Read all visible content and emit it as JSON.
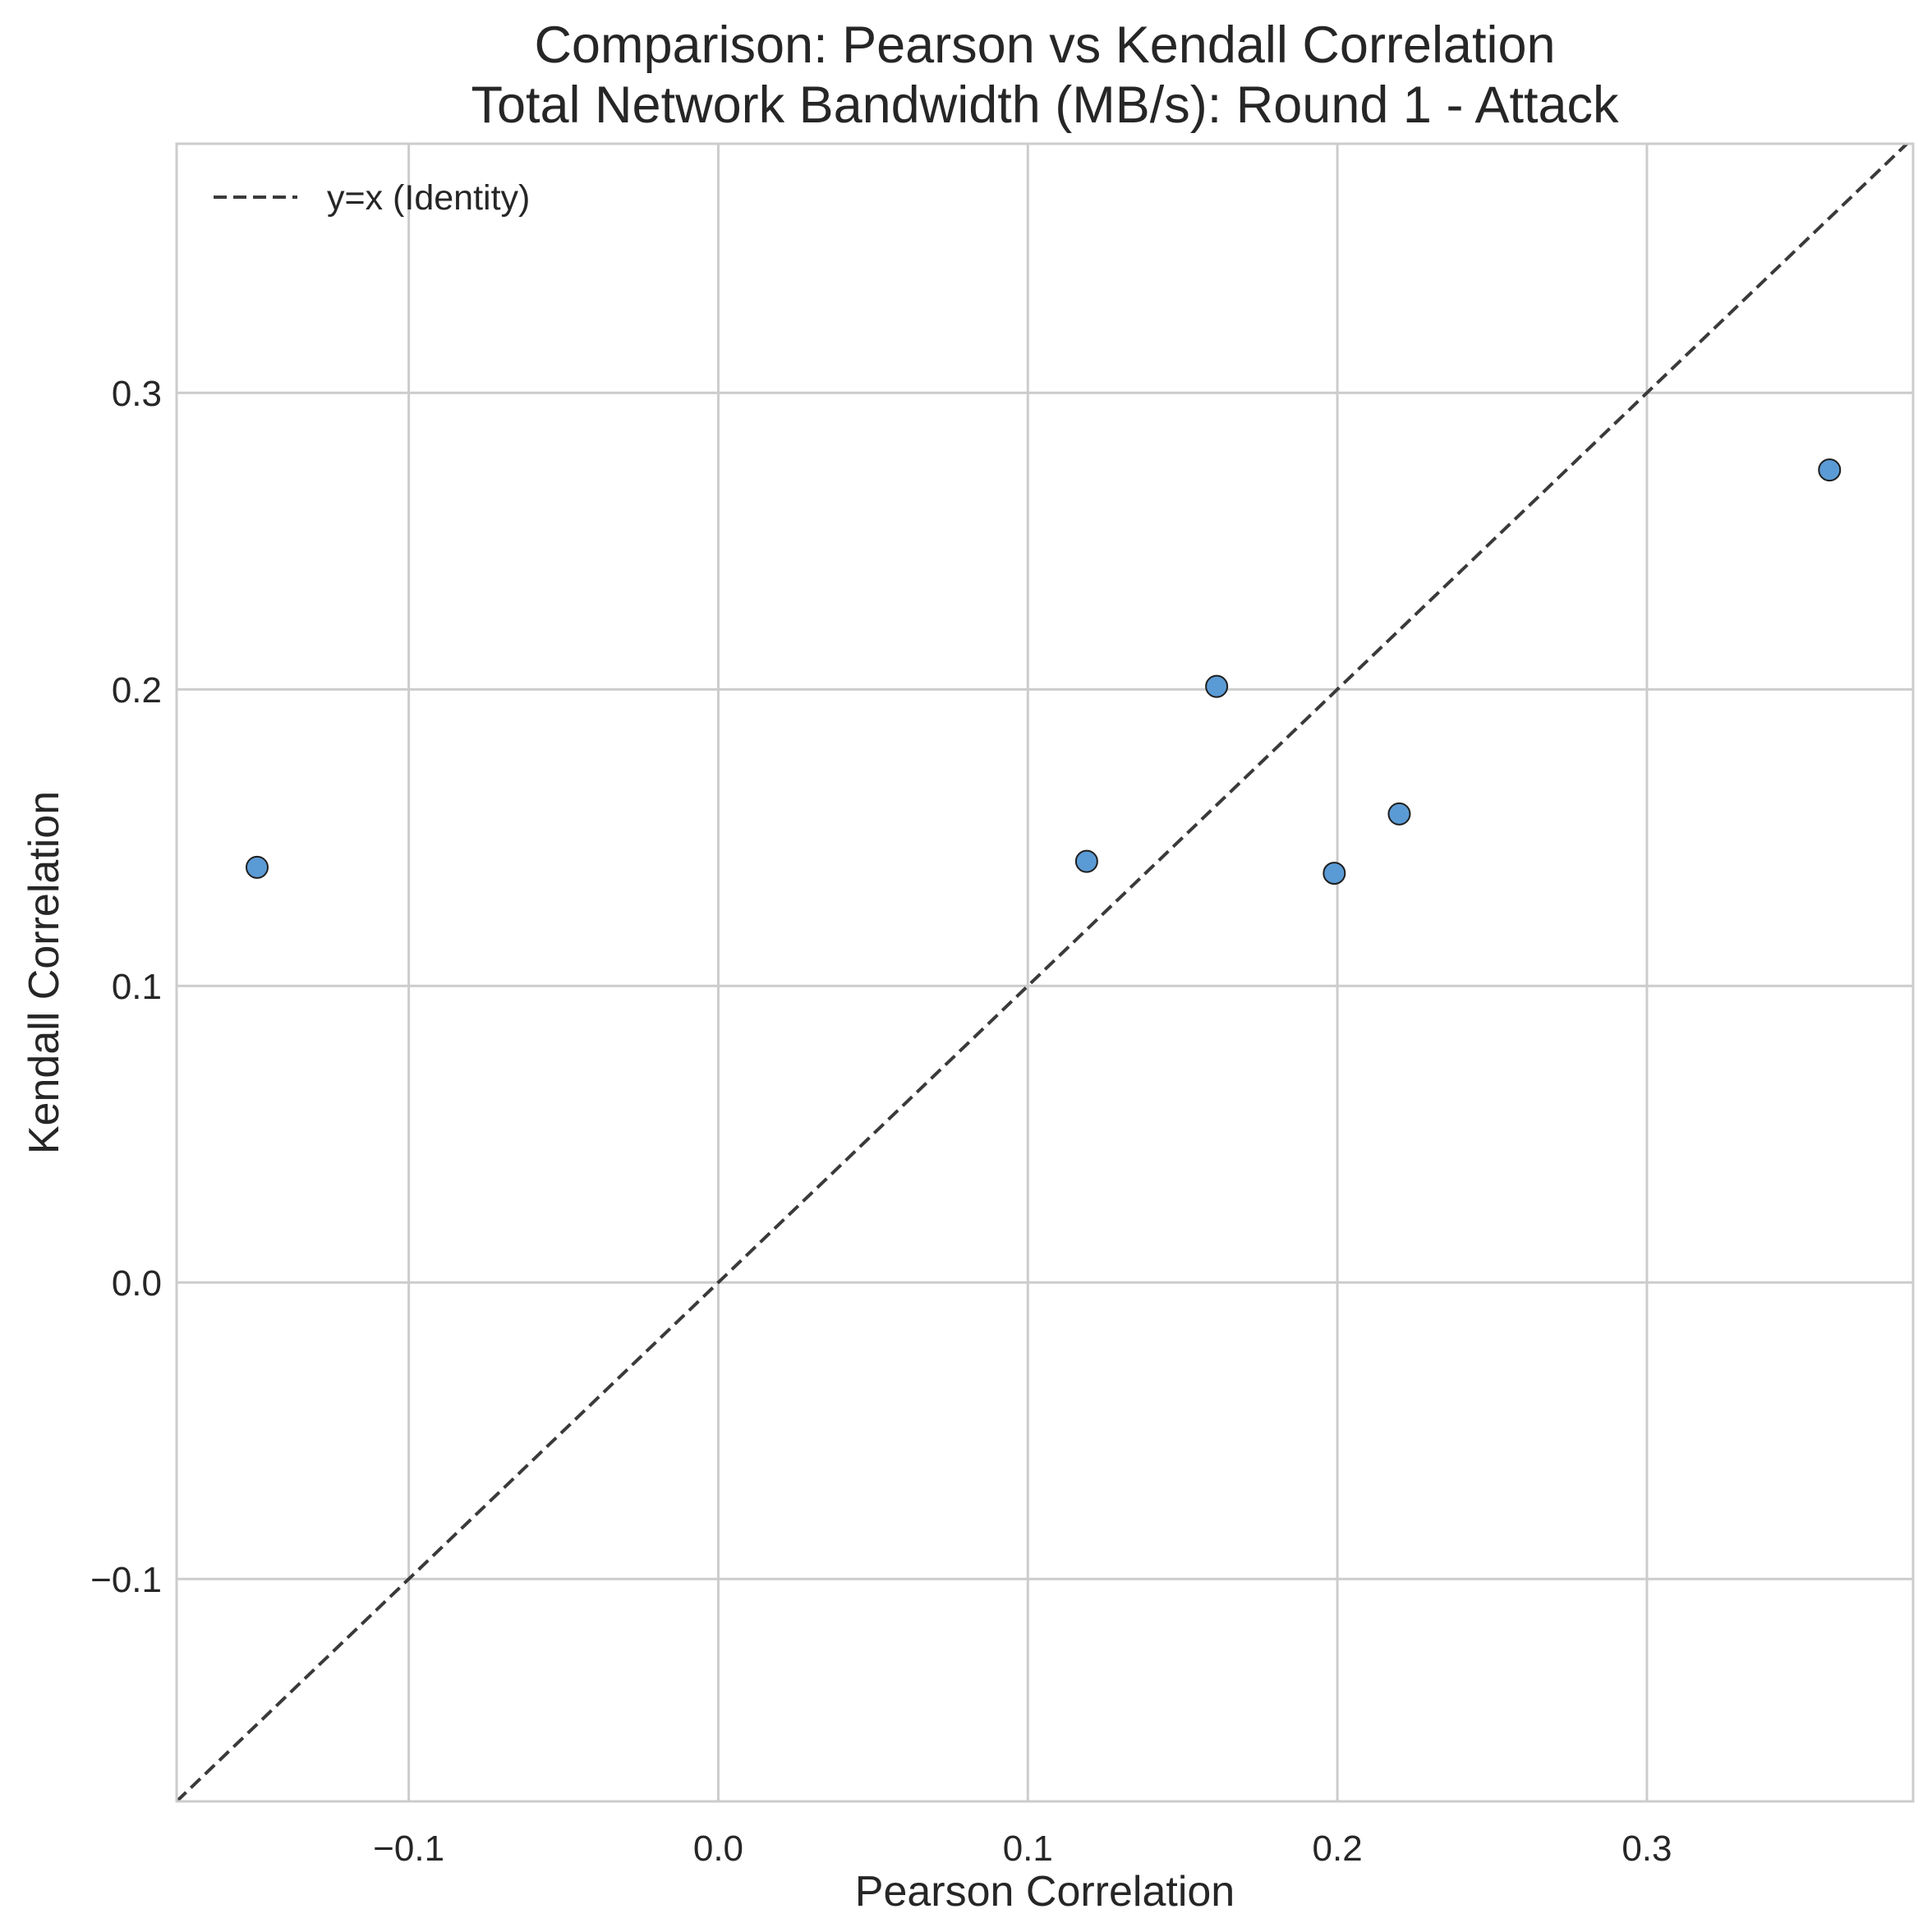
{
  "chart_data": {
    "type": "scatter",
    "title": "Comparison: Pearson vs Kendall Correlation",
    "subtitle": "Total Network Bandwidth (MB/s): Round 1 - Attack",
    "xlabel": "Pearson Correlation",
    "ylabel": "Kendall Correlation",
    "xlim": [
      -0.175,
      0.386
    ],
    "ylim": [
      -0.175,
      0.384
    ],
    "xticks": [
      -0.1,
      0.0,
      0.1,
      0.2,
      0.3
    ],
    "yticks": [
      -0.1,
      0.0,
      0.1,
      0.2,
      0.3
    ],
    "xtick_labels": [
      "−0.1",
      "0.0",
      "0.1",
      "0.2",
      "0.3"
    ],
    "ytick_labels": [
      "−0.1",
      "0.0",
      "0.1",
      "0.2",
      "0.3"
    ],
    "grid": true,
    "legend_position": "top-left",
    "points": [
      {
        "x": -0.149,
        "y": 0.14
      },
      {
        "x": 0.119,
        "y": 0.142
      },
      {
        "x": 0.161,
        "y": 0.201
      },
      {
        "x": 0.199,
        "y": 0.138
      },
      {
        "x": 0.22,
        "y": 0.158
      },
      {
        "x": 0.359,
        "y": 0.274
      }
    ],
    "reference_line": {
      "name": "y=x (Identity)",
      "style": "dashed",
      "color": "#3a3a3a"
    },
    "point_color": "#5b9bd5",
    "point_edge_color": "#1f1f1f"
  }
}
